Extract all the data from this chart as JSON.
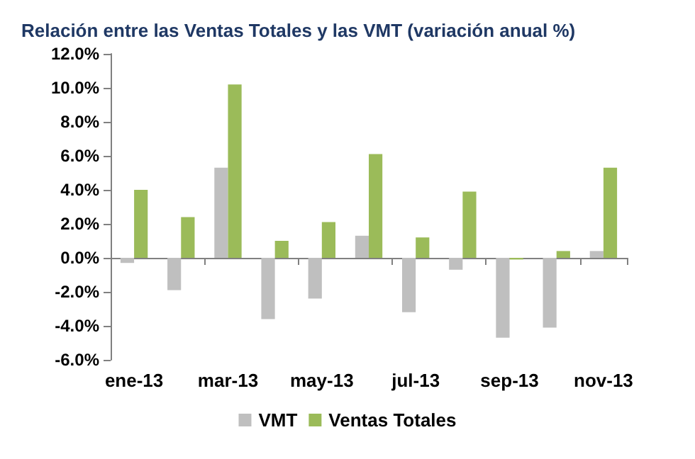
{
  "chart_data": {
    "type": "bar",
    "title": "Relación entre las Ventas Totales y las VMT (variación anual %)",
    "categories": [
      "ene-13",
      null,
      "mar-13",
      null,
      "may-13",
      null,
      "jul-13",
      null,
      "sep-13",
      null,
      "nov-13"
    ],
    "series": [
      {
        "name": "VMT",
        "color": "#bfbfbf",
        "values": [
          -0.3,
          -1.9,
          5.3,
          -3.6,
          -2.4,
          1.3,
          -3.2,
          -0.7,
          -4.7,
          -4.1,
          0.4
        ]
      },
      {
        "name": "Ventas Totales",
        "color": "#9bbb59",
        "values": [
          4.0,
          2.4,
          10.2,
          1.0,
          2.1,
          6.1,
          1.2,
          3.9,
          -0.1,
          0.4,
          5.3
        ]
      }
    ],
    "ylim": [
      -6,
      12
    ],
    "yticks": [
      {
        "value": -6,
        "label": "-6.0%"
      },
      {
        "value": -4,
        "label": "-4.0%"
      },
      {
        "value": -2,
        "label": "-2.0%"
      },
      {
        "value": 0,
        "label": "0.0%"
      },
      {
        "value": 2,
        "label": "2.0%"
      },
      {
        "value": 4,
        "label": "4.0%"
      },
      {
        "value": 6,
        "label": "6.0%"
      },
      {
        "value": 8,
        "label": "8.0%"
      },
      {
        "value": 10,
        "label": "10.0%"
      },
      {
        "value": 12,
        "label": "12.0%"
      }
    ],
    "legend": "bottom"
  }
}
